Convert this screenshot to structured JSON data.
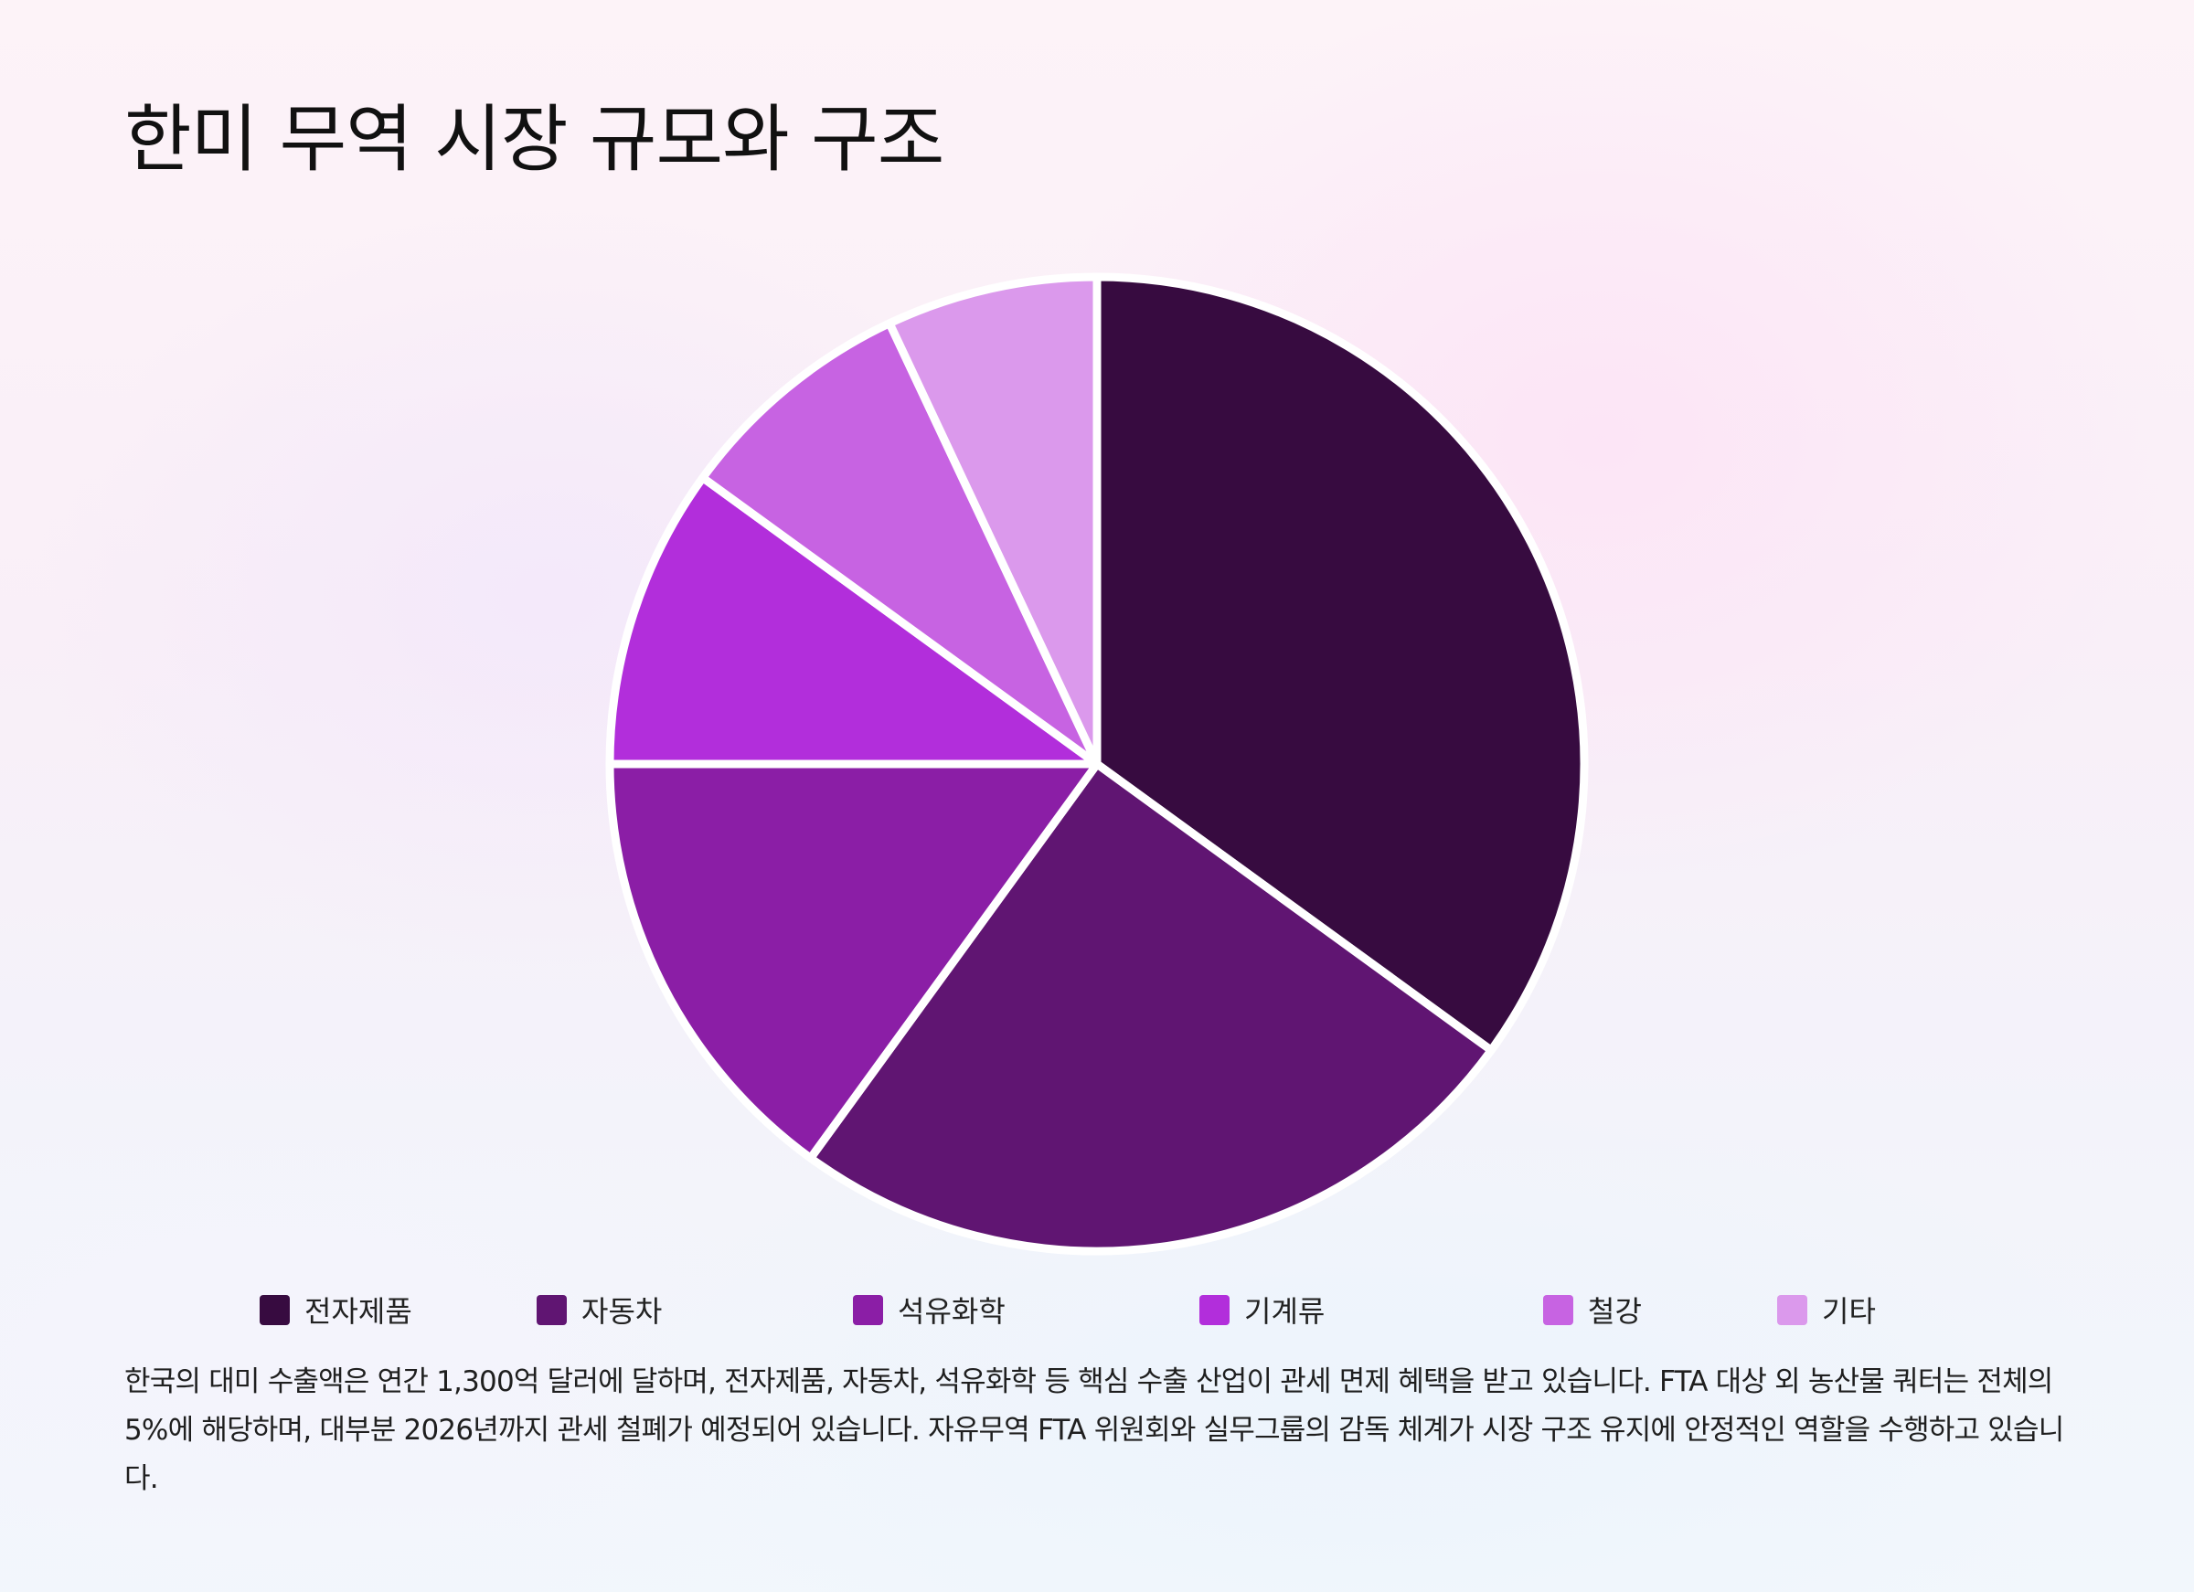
{
  "title": "한미 무역 시장 규모와 구조",
  "chart_data": {
    "type": "pie",
    "slices": [
      {
        "label": "전자제품",
        "value": 35,
        "color": "#370b40"
      },
      {
        "label": "자동차",
        "value": 25,
        "color": "#601572"
      },
      {
        "label": "석유화학",
        "value": 15,
        "color": "#8b1ea6"
      },
      {
        "label": "기계류",
        "value": 10,
        "color": "#b22edb"
      },
      {
        "label": "철강",
        "value": 8,
        "color": "#c763e2"
      },
      {
        "label": "기타",
        "value": 7,
        "color": "#db99ec"
      }
    ],
    "start_angle": "12 o'clock",
    "direction": "clockwise",
    "slice_border_color": "#ffffff",
    "legend_position": "bottom"
  },
  "description": "한국의 대미 수출액은 연간 1,300억 달러에 달하며, 전자제품, 자동차, 석유화학 등 핵심 수출 산업이 관세 면제 혜택을 받고 있습니다. FTA 대상 외 농산물 쿼터는 전체의 5%에 해당하며, 대부분 2026년까지 관세 철폐가 예정되어 있습니다. 자유무역 FTA 위원회와 실무그룹의 감독 체계가 시장 구조 유지에 안정적인 역할을 수행하고 있습니다."
}
